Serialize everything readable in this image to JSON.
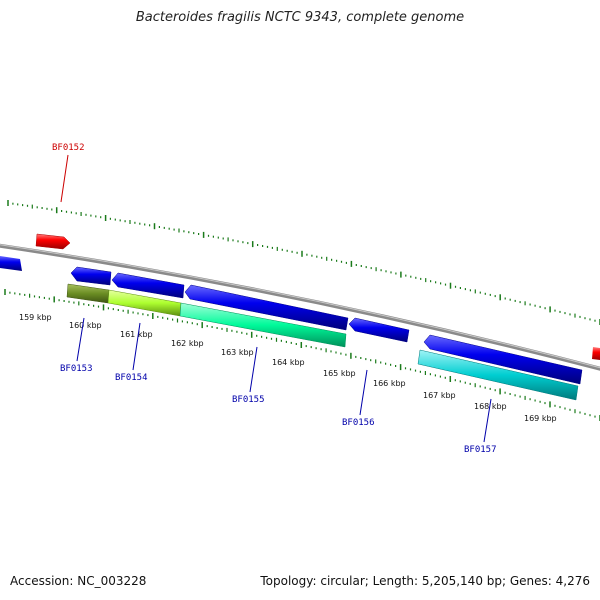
{
  "title": "Bacteroides fragilis NCTC 9343, complete genome",
  "footer": {
    "accession": "Accession: NC_003228",
    "topology": "Topology: circular; Length: 5,205,140 bp; Genes: 4,276"
  },
  "colors": {
    "backbone": "#8a8a8a",
    "forward_gene": "#ff0000",
    "reverse_gene": "#0000ee",
    "tick": "#1a7a1a",
    "label_forward": "#cc0000",
    "label_reverse": "#0000aa"
  },
  "scale_labels": [
    "159 kbp",
    "160 kbp",
    "161 kbp",
    "162 kbp",
    "163 kbp",
    "164 kbp",
    "165 kbp",
    "166 kbp",
    "167 kbp",
    "168 kbp",
    "169 kbp"
  ],
  "gene_labels": [
    {
      "text": "BF0152",
      "strand": "forward"
    },
    {
      "text": "BF0153",
      "strand": "reverse"
    },
    {
      "text": "BF0154",
      "strand": "reverse"
    },
    {
      "text": "BF0155",
      "strand": "reverse"
    },
    {
      "text": "BF0156",
      "strand": "reverse"
    },
    {
      "text": "BF0157",
      "strand": "reverse"
    }
  ],
  "feature_colors": {
    "bf0153": "#6b8e23",
    "bf0154": "#adff2f",
    "bf0155": "#00fa9a",
    "bf0157": "#00ced1"
  }
}
